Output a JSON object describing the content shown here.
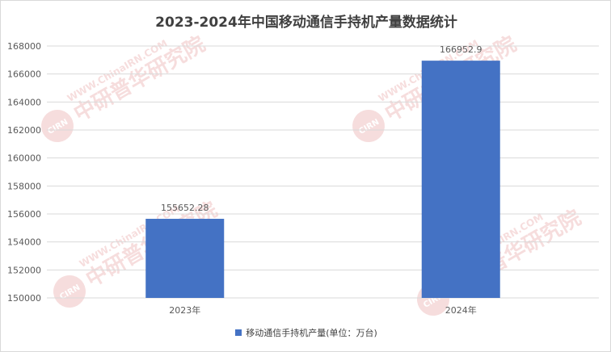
{
  "chart_data": {
    "type": "bar",
    "title": "2023-2024年中国移动通信手持机产量数据统计",
    "categories": [
      "2023年",
      "2024年"
    ],
    "series": [
      {
        "name": "移动通信手持机产量(单位：万台)",
        "values": [
          155652.28,
          166952.9
        ],
        "value_labels": [
          "155652.28",
          "166952.9"
        ],
        "color": "#4472C4"
      }
    ],
    "ylim": [
      150000,
      168000
    ],
    "yticks": [
      150000,
      152000,
      154000,
      156000,
      158000,
      160000,
      162000,
      164000,
      166000,
      168000
    ],
    "ytick_labels": [
      "150000",
      "152000",
      "154000",
      "156000",
      "158000",
      "160000",
      "162000",
      "164000",
      "166000",
      "168000"
    ],
    "xlabel": "",
    "ylabel": "",
    "grid": true,
    "legend_position": "bottom"
  },
  "watermark": {
    "badge_text": "CIRN",
    "brand_text": "中研普华研究院",
    "url_text": "WWW.ChinaIRN.COM",
    "color": "#e8a0a0"
  },
  "colors": {
    "grid": "#d9d9d9",
    "axis_text": "#595959",
    "title": "#404040"
  }
}
